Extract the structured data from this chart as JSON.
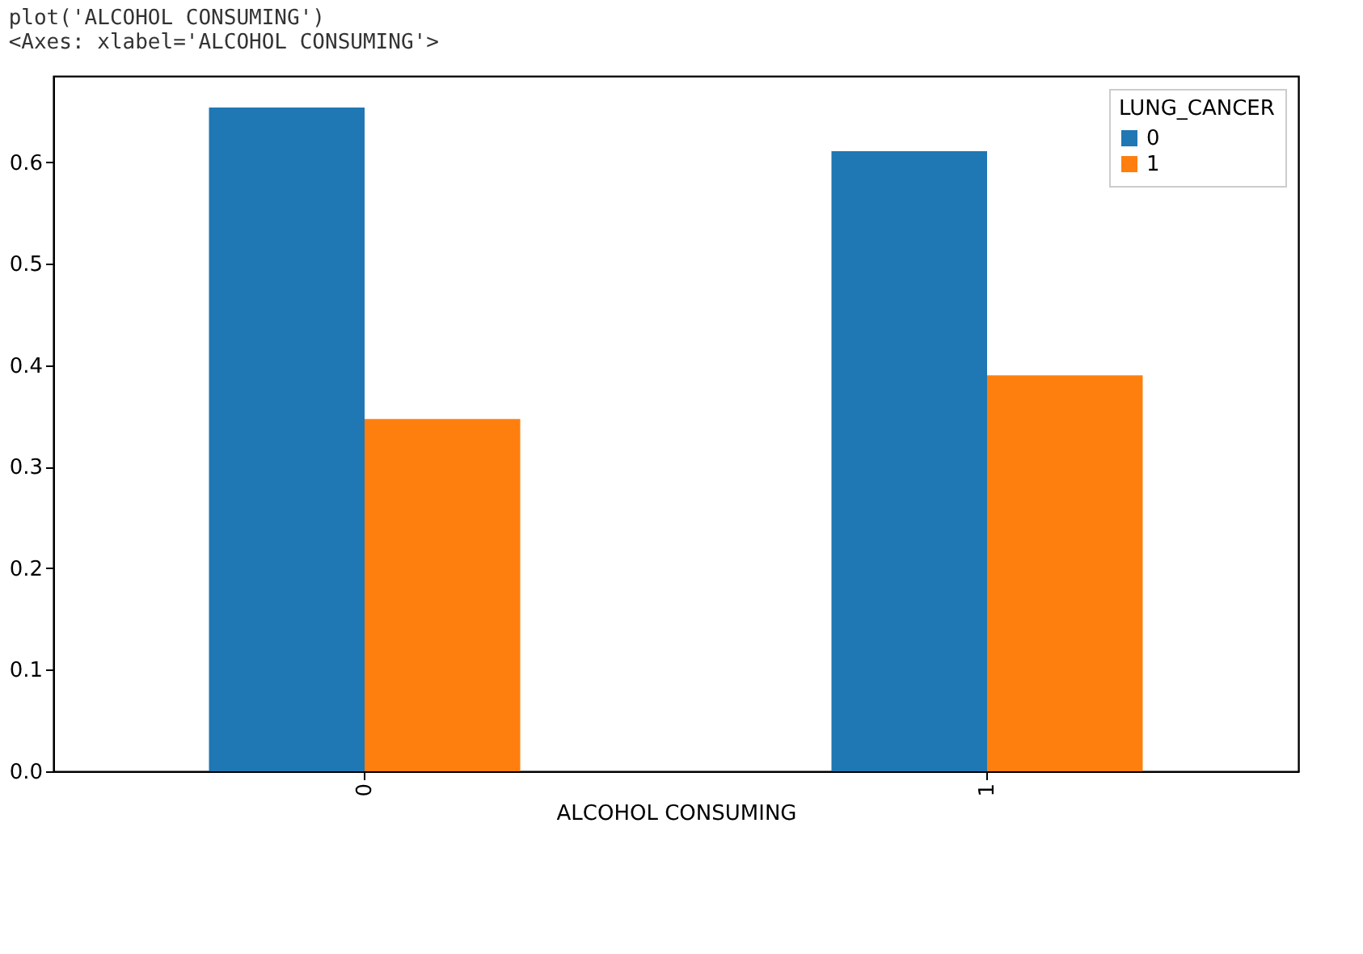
{
  "chart_data": {
    "type": "bar",
    "xlabel": "ALCOHOL CONSUMING",
    "legend_title": "LUNG_CANCER",
    "annotations": [
      "plot('ALCOHOL CONSUMING')",
      "<Axes: xlabel='ALCOHOL CONSUMING'>"
    ],
    "categories": [
      "0",
      "1"
    ],
    "series": [
      {
        "name": "0",
        "color": "#1f77b4",
        "values": [
          0.654,
          0.611
        ]
      },
      {
        "name": "1",
        "color": "#ff7f0e",
        "values": [
          0.347,
          0.39
        ]
      }
    ],
    "ylim": [
      0,
      0.685
    ],
    "yticks": [
      {
        "value": 0,
        "label": "0.0"
      },
      0.1,
      0.2,
      0.3,
      0.4,
      0.5,
      0.6
    ],
    "legend": "top right",
    "grid": false
  }
}
